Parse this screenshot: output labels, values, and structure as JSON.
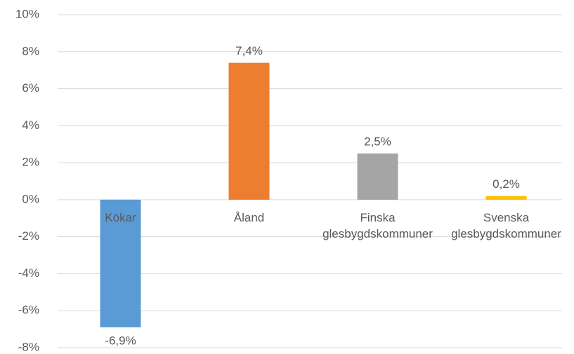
{
  "chart_data": {
    "type": "bar",
    "categories": [
      "Kökar",
      "Åland",
      "Finska glesbygdskommuner",
      "Svenska glesbygdskommuner"
    ],
    "values": [
      -6.9,
      7.4,
      2.5,
      0.2
    ],
    "value_labels": [
      "-6,9%",
      "7,4%",
      "2,5%",
      "0,2%"
    ],
    "colors": [
      "#5b9bd5",
      "#ed7d31",
      "#a5a5a5",
      "#ffc000"
    ],
    "ylim": [
      -8,
      10
    ],
    "yticks": [
      {
        "value": -8,
        "label": "-8%"
      },
      {
        "value": -6,
        "label": "-6%"
      },
      {
        "value": -4,
        "label": "-4%"
      },
      {
        "value": -2,
        "label": "-2%"
      },
      {
        "value": 0,
        "label": "0%"
      },
      {
        "value": 2,
        "label": "2%"
      },
      {
        "value": 4,
        "label": "4%"
      },
      {
        "value": 6,
        "label": "6%"
      },
      {
        "value": 8,
        "label": "8%"
      },
      {
        "value": 10,
        "label": "10%"
      }
    ],
    "grid": true
  }
}
